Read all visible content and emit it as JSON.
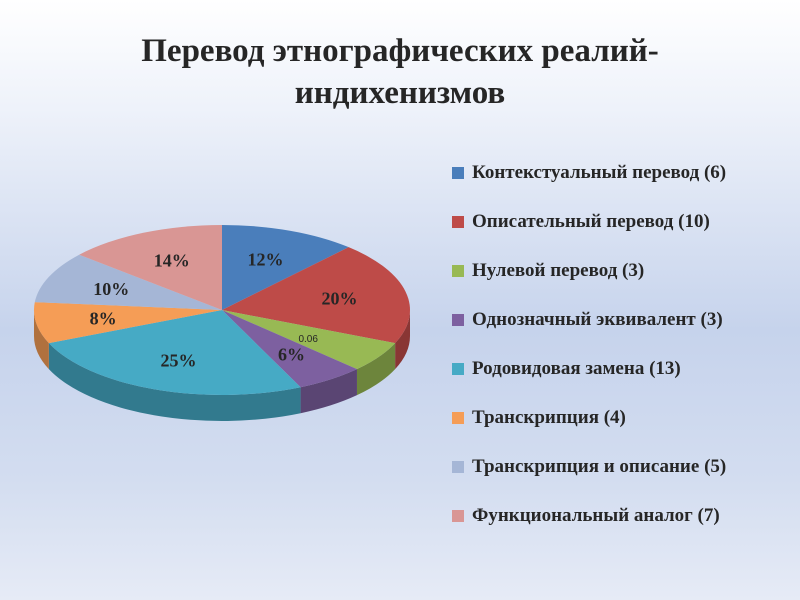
{
  "title": {
    "line1": "Перевод этнографических реалий-",
    "line2": "индихенизмов"
  },
  "chart_data": {
    "type": "pie",
    "title": "Перевод этнографических реалий-индихенизмов",
    "legend_position": "right",
    "series": [
      {
        "name": "Контекстуальный перевод (6)",
        "value": 6,
        "label": "12%",
        "color": "#4a7ebb"
      },
      {
        "name": "Описательный перевод (10)",
        "value": 10,
        "label": "20%",
        "color": "#be4b48"
      },
      {
        "name": "Нулевой перевод (3)",
        "value": 3,
        "label": "0.06",
        "color": "#98b954"
      },
      {
        "name": "Однозначный эквивалент (3)",
        "value": 3,
        "label": "6%",
        "color": "#7d60a0"
      },
      {
        "name": "Родовидовая замена (13)",
        "value": 13,
        "label": "25%",
        "color": "#46aac5"
      },
      {
        "name": "Транскрипция (4)",
        "value": 4,
        "label": "8%",
        "color": "#f59d56"
      },
      {
        "name": "Транскрипция и описание (5)",
        "value": 5,
        "label": "10%",
        "color": "#a5b6d6"
      },
      {
        "name": "Функциональный аналог (7)",
        "value": 7,
        "label": "14%",
        "color": "#d99694"
      }
    ]
  }
}
